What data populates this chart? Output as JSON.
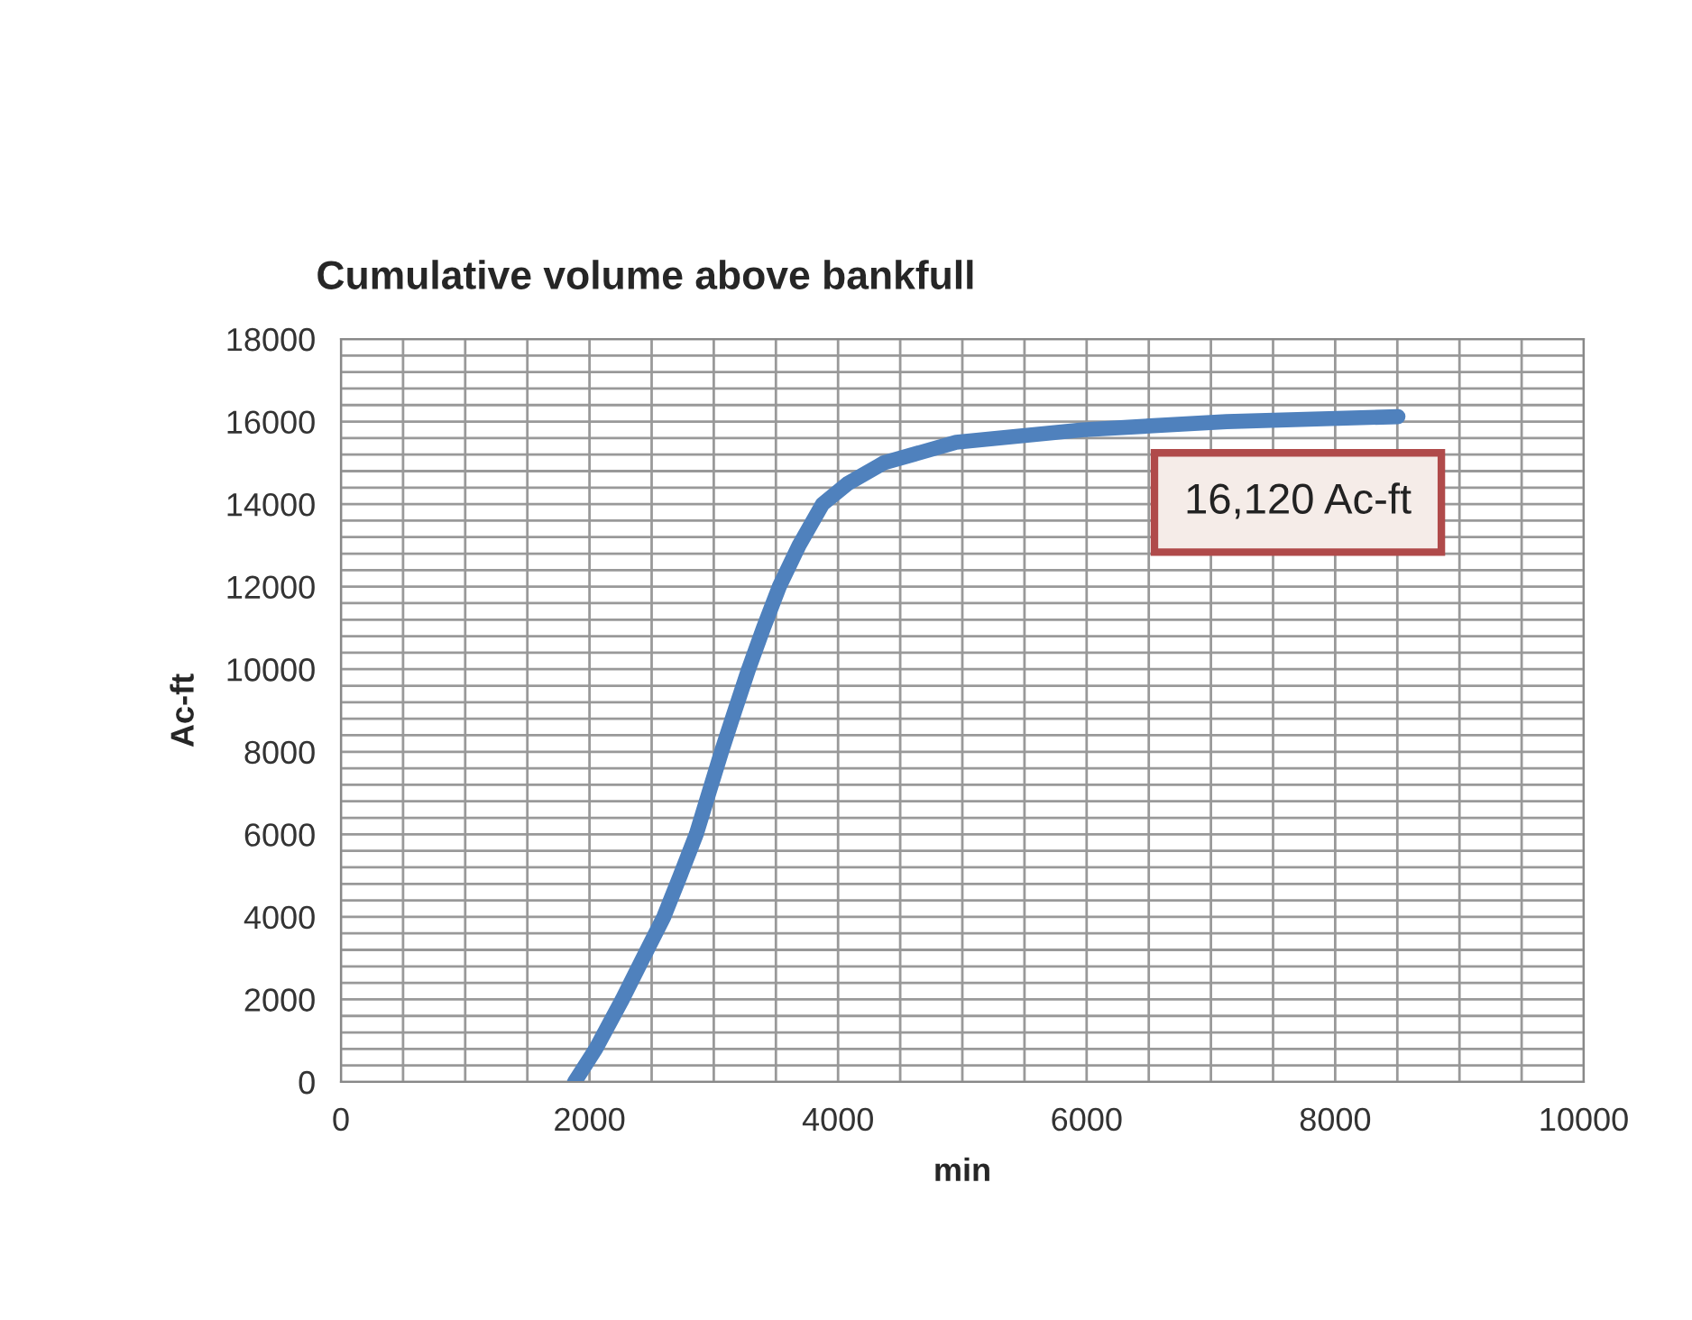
{
  "chart_data": {
    "type": "line",
    "title": "Cumulative volume above bankfull",
    "xlabel": "min",
    "ylabel": "Ac-ft",
    "x": [
      1880,
      2050,
      2264,
      2430,
      2598,
      2730,
      2859,
      2960,
      3062,
      3170,
      3280,
      3400,
      3527,
      3686,
      3875,
      4078,
      4369,
      4950,
      5965,
      7126,
      8505
    ],
    "series": [
      {
        "color": "#4f81bd",
        "values": [
          0,
          800,
          2000,
          3000,
          4000,
          5000,
          6000,
          7000,
          8000,
          9000,
          10000,
          11000,
          12000,
          13000,
          14000,
          14500,
          15000,
          15500,
          15800,
          16000,
          16120
        ]
      }
    ],
    "xlim": [
      0,
      10000
    ],
    "ylim": [
      0,
      18000
    ],
    "xticks": [
      0,
      {
        "value": 500,
        "label": null
      },
      {
        "value": 1000,
        "label": null
      },
      {
        "value": 1500,
        "label": null
      },
      2000,
      {
        "value": 2500,
        "label": null
      },
      {
        "value": 3000,
        "label": null
      },
      {
        "value": 3500,
        "label": null
      },
      4000,
      {
        "value": 4500,
        "label": null
      },
      {
        "value": 5000,
        "label": null
      },
      {
        "value": 5500,
        "label": null
      },
      6000,
      {
        "value": 6500,
        "label": null
      },
      {
        "value": 7000,
        "label": null
      },
      {
        "value": 7500,
        "label": null
      },
      8000,
      {
        "value": 8500,
        "label": null
      },
      {
        "value": 9000,
        "label": null
      },
      {
        "value": 9500,
        "label": null
      },
      10000
    ],
    "yticks": [
      0,
      {
        "value": 400,
        "label": null
      },
      {
        "value": 800,
        "label": null
      },
      {
        "value": 1200,
        "label": null
      },
      {
        "value": 1600,
        "label": null
      },
      2000,
      {
        "value": 2400,
        "label": null
      },
      {
        "value": 2800,
        "label": null
      },
      {
        "value": 3200,
        "label": null
      },
      {
        "value": 3600,
        "label": null
      },
      4000,
      {
        "value": 4400,
        "label": null
      },
      {
        "value": 4800,
        "label": null
      },
      {
        "value": 5200,
        "label": null
      },
      {
        "value": 5600,
        "label": null
      },
      6000,
      {
        "value": 6400,
        "label": null
      },
      {
        "value": 6800,
        "label": null
      },
      {
        "value": 7200,
        "label": null
      },
      {
        "value": 7600,
        "label": null
      },
      8000,
      {
        "value": 8400,
        "label": null
      },
      {
        "value": 8800,
        "label": null
      },
      {
        "value": 9200,
        "label": null
      },
      {
        "value": 9600,
        "label": null
      },
      10000,
      {
        "value": 10400,
        "label": null
      },
      {
        "value": 10800,
        "label": null
      },
      {
        "value": 11200,
        "label": null
      },
      {
        "value": 11600,
        "label": null
      },
      12000,
      {
        "value": 12400,
        "label": null
      },
      {
        "value": 12800,
        "label": null
      },
      {
        "value": 13200,
        "label": null
      },
      {
        "value": 13600,
        "label": null
      },
      14000,
      {
        "value": 14400,
        "label": null
      },
      {
        "value": 14800,
        "label": null
      },
      {
        "value": 15200,
        "label": null
      },
      {
        "value": 15600,
        "label": null
      },
      16000,
      {
        "value": 16400,
        "label": null
      },
      {
        "value": 16800,
        "label": null
      },
      {
        "value": 17200,
        "label": null
      },
      {
        "value": 17600,
        "label": null
      },
      18000
    ],
    "grid": true,
    "marker": "none",
    "line_style": "solid",
    "annotations": [
      "16,120 Ac-ft"
    ]
  }
}
